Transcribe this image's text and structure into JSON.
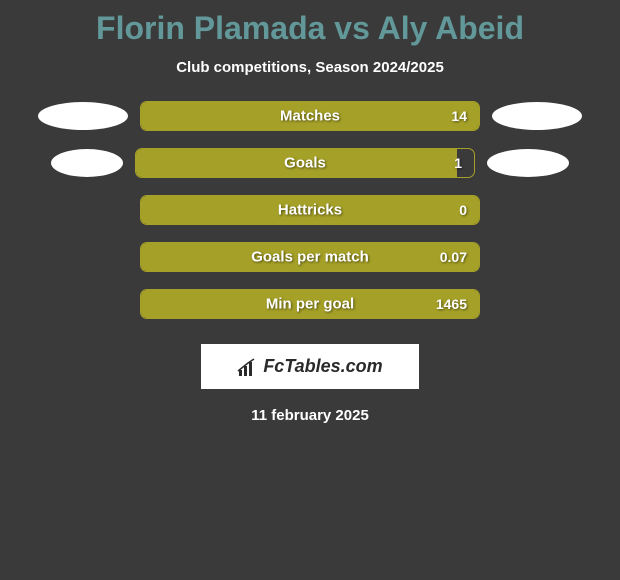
{
  "title": "Florin Plamada vs Aly Abeid",
  "subtitle": "Club competitions, Season 2024/2025",
  "date": "11 february 2025",
  "logo_text": "FcTables.com",
  "colors": {
    "background": "#3a3a3a",
    "title_color": "#629899",
    "bar_fill": "#a5a027",
    "bar_border": "#a5a027",
    "ellipse": "#ffffff",
    "text": "#ffffff",
    "logo_bg": "#ffffff",
    "logo_text": "#2a2a2a"
  },
  "stats": [
    {
      "label": "Matches",
      "value_right": "14",
      "fill_percent": 100,
      "show_left_ellipse": true,
      "show_right_ellipse": true,
      "left_ellipse_width": 90,
      "right_ellipse_width": 90
    },
    {
      "label": "Goals",
      "value_right": "1",
      "fill_percent": 95,
      "show_left_ellipse": true,
      "show_right_ellipse": true,
      "left_ellipse_width": 72,
      "right_ellipse_width": 82
    },
    {
      "label": "Hattricks",
      "value_right": "0",
      "fill_percent": 100,
      "show_left_ellipse": false,
      "show_right_ellipse": false
    },
    {
      "label": "Goals per match",
      "value_right": "0.07",
      "fill_percent": 100,
      "show_left_ellipse": false,
      "show_right_ellipse": false
    },
    {
      "label": "Min per goal",
      "value_right": "1465",
      "fill_percent": 100,
      "show_left_ellipse": false,
      "show_right_ellipse": false
    }
  ]
}
